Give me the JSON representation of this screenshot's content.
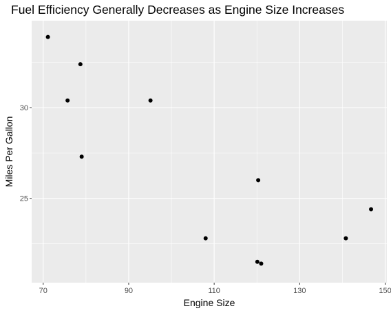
{
  "chart_data": {
    "type": "scatter",
    "title": "Fuel Efficiency Generally Decreases as Engine Size Increases",
    "xlabel": "Engine Size",
    "ylabel": "Miles Per Gallon",
    "xlim": [
      67.3,
      150.4
    ],
    "ylim": [
      20.35,
      34.8
    ],
    "x_ticks": [
      70,
      90,
      110,
      130,
      150
    ],
    "y_ticks": [
      25,
      30
    ],
    "grid": true,
    "legend": "none",
    "colors": {
      "panel": "#ebebeb",
      "grid": "#ffffff",
      "point": "#000000",
      "tick_label": "#4d4d4d"
    },
    "points": [
      {
        "x": 71.1,
        "y": 33.9
      },
      {
        "x": 75.7,
        "y": 30.4
      },
      {
        "x": 78.7,
        "y": 32.4
      },
      {
        "x": 79.0,
        "y": 27.3
      },
      {
        "x": 95.1,
        "y": 30.4
      },
      {
        "x": 108.0,
        "y": 22.8
      },
      {
        "x": 120.1,
        "y": 21.5
      },
      {
        "x": 120.3,
        "y": 26.0
      },
      {
        "x": 121.0,
        "y": 21.4
      },
      {
        "x": 140.8,
        "y": 22.8
      },
      {
        "x": 146.7,
        "y": 24.4
      }
    ]
  }
}
